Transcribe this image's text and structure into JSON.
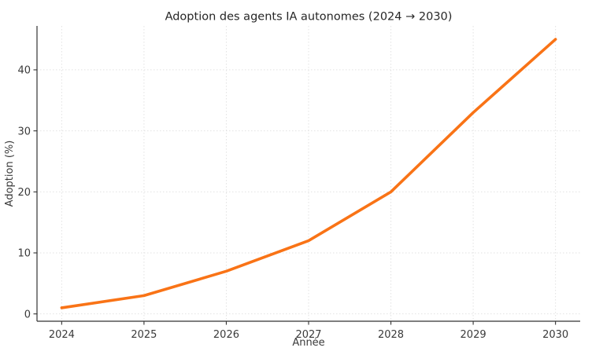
{
  "chart_data": {
    "type": "line",
    "title": "Adoption des agents IA autonomes (2024 → 2030)",
    "xlabel": "Année",
    "ylabel": "Adoption (%)",
    "x": [
      2024,
      2025,
      2026,
      2027,
      2028,
      2029,
      2030
    ],
    "series": [
      {
        "name": "Adoption",
        "values": [
          1,
          3,
          7,
          12,
          20,
          33,
          45
        ]
      }
    ],
    "xticks": [
      2024,
      2025,
      2026,
      2027,
      2028,
      2029,
      2030
    ],
    "yticks": [
      0,
      10,
      20,
      30,
      40
    ],
    "xlim": [
      2023.7,
      2030.3
    ],
    "ylim": [
      -1.2,
      47.2
    ],
    "grid": true,
    "grid_style": "dotted",
    "legend": false,
    "colors": {
      "line": "#f97316",
      "axis": "#333333",
      "grid": "#e2e2e2",
      "text": "#3a3a3a",
      "title_text": "#262626",
      "background": "#ffffff"
    }
  }
}
